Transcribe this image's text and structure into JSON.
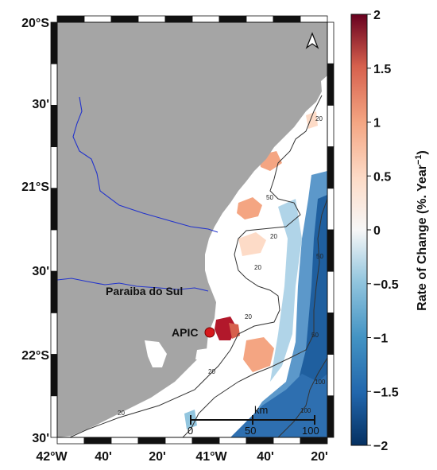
{
  "map": {
    "lat_labels": [
      "20°S",
      "30'",
      "21°S",
      "30'",
      "22°S",
      "30'"
    ],
    "lon_labels": [
      "42°W",
      "40'",
      "20'",
      "41°W",
      "40'",
      "20'"
    ],
    "river_name": "Paraiba do Sul",
    "station_label": "APIC",
    "north_symbol": "A",
    "contour_labels": [
      "20",
      "50",
      "20",
      "20",
      "50",
      "20",
      "20",
      "50",
      "100",
      "20",
      "100"
    ],
    "scale_bar": {
      "unit": "km",
      "ticks": [
        "0",
        "50",
        "100"
      ]
    },
    "colors": {
      "land": "#a5a5a5",
      "river": "#2233cc",
      "station": "#d7191c",
      "contour": "#333333"
    }
  },
  "colorbar": {
    "title": "Rate of Change (%. Year",
    "title_sup": "−1",
    "title_close": ")",
    "tick_labels": [
      "2",
      "1.5",
      "1",
      "0.5",
      "0",
      "−0.5",
      "−1",
      "−1.5",
      "−2"
    ],
    "range": [
      -2,
      2
    ],
    "colors": [
      "#053061",
      "#2166ac",
      "#4393c3",
      "#92c5de",
      "#f7f7f7",
      "#fddbc7",
      "#f4a582",
      "#d6604d",
      "#b2182b",
      "#67001f"
    ]
  }
}
